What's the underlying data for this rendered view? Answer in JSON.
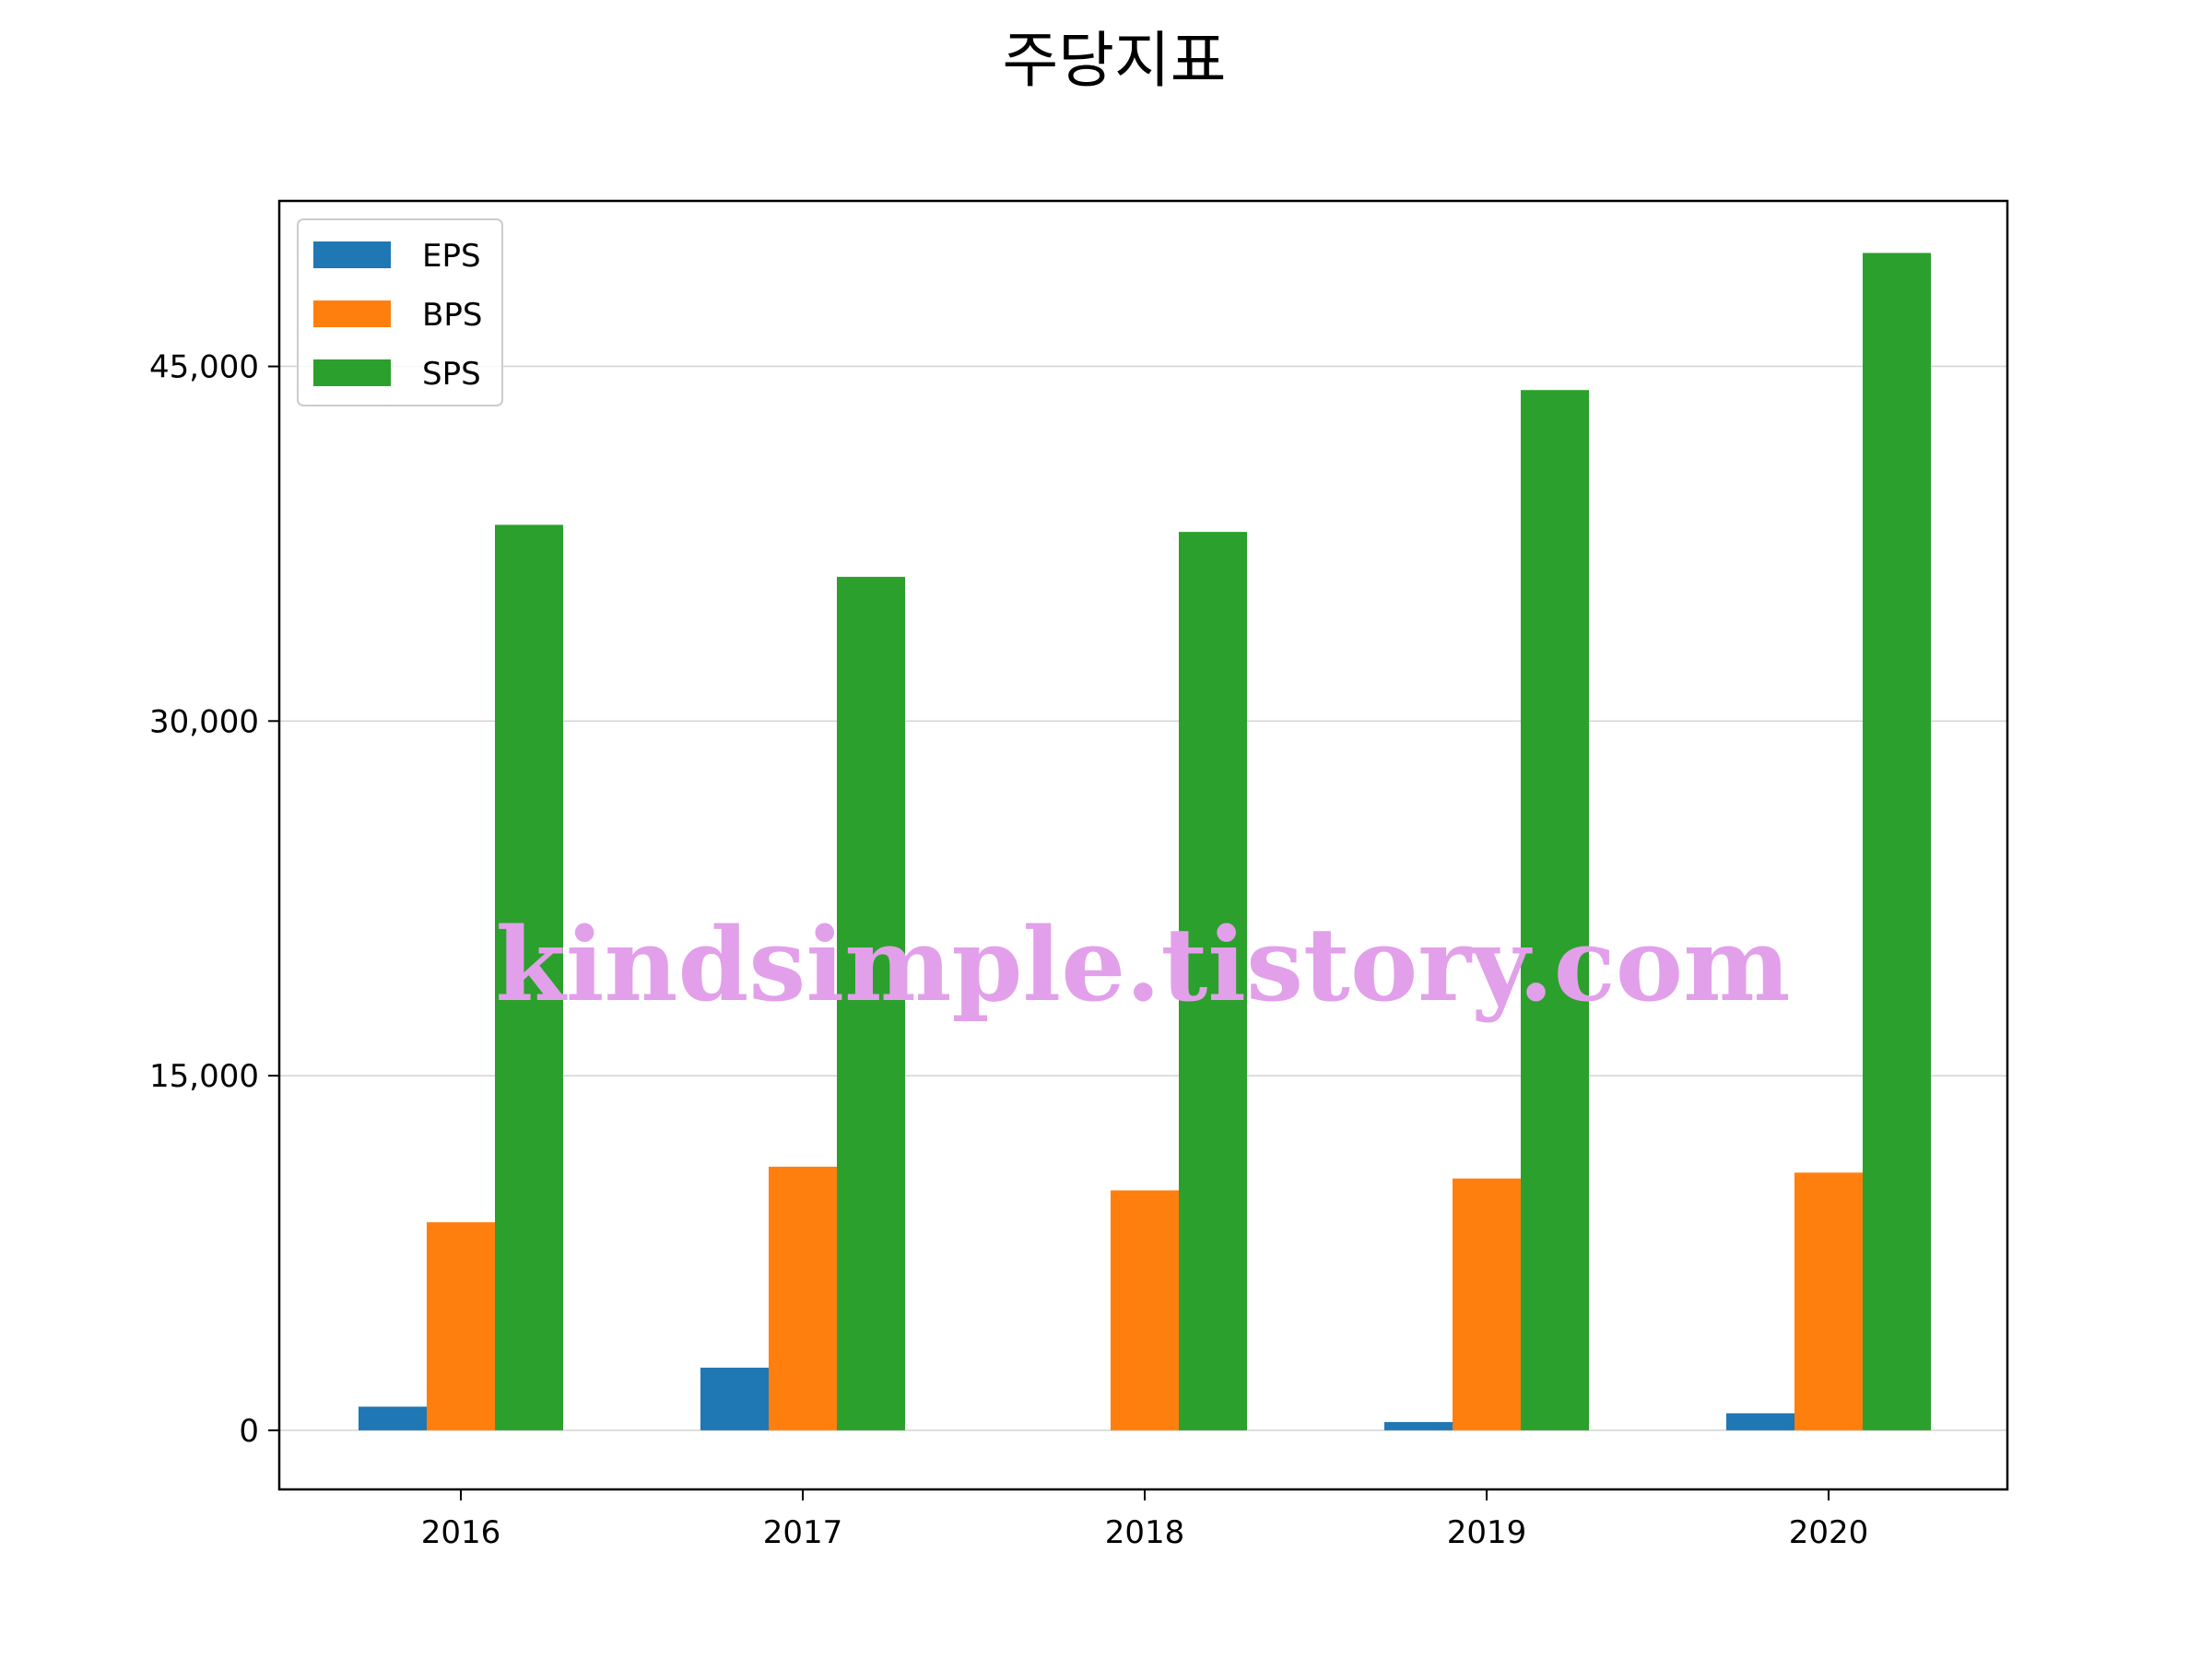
{
  "chart_data": {
    "type": "bar",
    "title": "주당지표",
    "xlabel": "",
    "ylabel": "",
    "categories": [
      "2016",
      "2017",
      "2018",
      "2019",
      "2020"
    ],
    "series": [
      {
        "name": "EPS",
        "color": "#1f77b4",
        "values": [
          1000,
          2650,
          0,
          350,
          720
        ]
      },
      {
        "name": "BPS",
        "color": "#ff7f0e",
        "values": [
          8800,
          11150,
          10150,
          10650,
          10900
        ]
      },
      {
        "name": "SPS",
        "color": "#2ca02c",
        "values": [
          38300,
          36100,
          38000,
          44000,
          49800
        ]
      }
    ],
    "ylim": [
      -2500,
      52000
    ],
    "yticks": [
      0,
      15000,
      30000,
      45000
    ],
    "ytick_labels": [
      "0",
      "15,000",
      "30,000",
      "45,000"
    ],
    "grid": "y",
    "legend_position": "upper-left",
    "watermark": "kindsimple.tistory.com",
    "watermark_color": "#e2a0ea"
  }
}
